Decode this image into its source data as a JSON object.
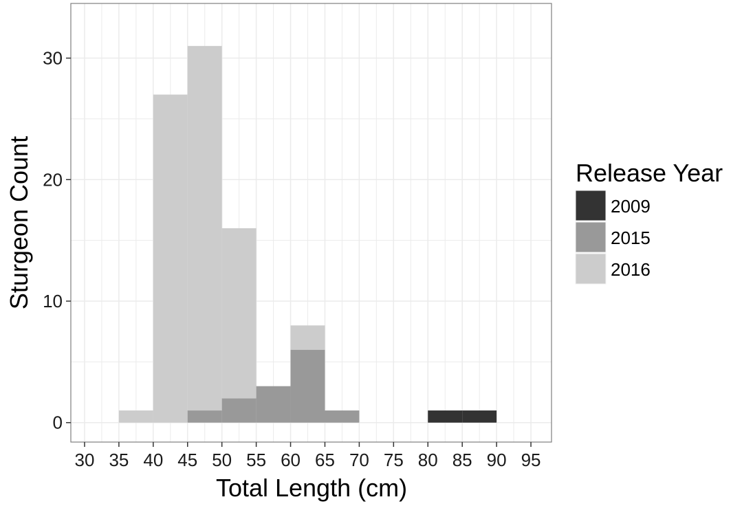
{
  "chart_data": {
    "type": "bar",
    "stacked": true,
    "xlabel": "Total Length (cm)",
    "ylabel": "Sturgeon Count",
    "xlim": [
      28,
      98
    ],
    "ylim": [
      -1.6,
      34.5
    ],
    "x_ticks": [
      30,
      35,
      40,
      45,
      50,
      55,
      60,
      65,
      70,
      75,
      80,
      85,
      90,
      95
    ],
    "y_ticks": [
      0,
      10,
      20,
      30
    ],
    "bin_width": 5,
    "bins": [
      {
        "start": 35,
        "end": 40
      },
      {
        "start": 40,
        "end": 45
      },
      {
        "start": 45,
        "end": 50
      },
      {
        "start": 50,
        "end": 55
      },
      {
        "start": 55,
        "end": 60
      },
      {
        "start": 60,
        "end": 65
      },
      {
        "start": 65,
        "end": 70
      },
      {
        "start": 70,
        "end": 75
      },
      {
        "start": 75,
        "end": 80
      },
      {
        "start": 80,
        "end": 85
      },
      {
        "start": 85,
        "end": 90
      }
    ],
    "series": [
      {
        "name": "2009",
        "color": "#333333",
        "values": [
          0,
          0,
          0,
          0,
          0,
          0,
          0,
          0,
          0,
          1,
          1
        ]
      },
      {
        "name": "2015",
        "color": "#999999",
        "values": [
          0,
          0,
          1,
          2,
          3,
          6,
          1,
          0,
          0,
          0,
          0
        ]
      },
      {
        "name": "2016",
        "color": "#cccccc",
        "values": [
          1,
          27,
          30,
          14,
          0,
          2,
          0,
          0,
          0,
          0,
          0
        ]
      }
    ],
    "legend": {
      "title": "Release Year",
      "position": "right"
    },
    "grid": true,
    "panel_background": "#ffffff",
    "grid_color": "#ebebeb"
  }
}
